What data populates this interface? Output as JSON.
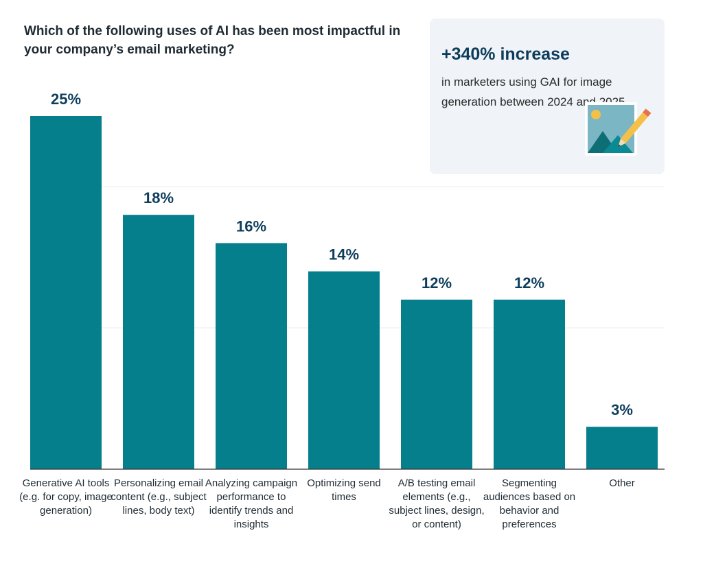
{
  "chart_data": {
    "type": "bar",
    "title": "Which of the following uses of AI has been most impactful in your company’s email marketing?",
    "categories": [
      "Generative AI tools (e.g. for copy, image generation)",
      "Personalizing email content (e.g., subject lines, body text)",
      "Analyzing campaign performance to identify trends and insights",
      "Optimizing send times",
      "A/B testing email elements (e.g., subject lines, design, or content)",
      "Segmenting audiences based on behavior and preferences",
      "Other"
    ],
    "values": [
      25,
      18,
      16,
      14,
      12,
      12,
      3
    ],
    "value_labels": [
      "25%",
      "18%",
      "16%",
      "14%",
      "12%",
      "12%",
      "3%"
    ],
    "xlabel": "",
    "ylabel": "",
    "ylim": [
      0,
      30
    ],
    "grid": true,
    "bar_color": "#067f8c",
    "label_color": "#0e3d5c"
  },
  "callout": {
    "headline": "+340% increase",
    "text": "in marketers using GAI for image generation between 2024 and 2025.",
    "icon": "image-pencil-icon"
  }
}
